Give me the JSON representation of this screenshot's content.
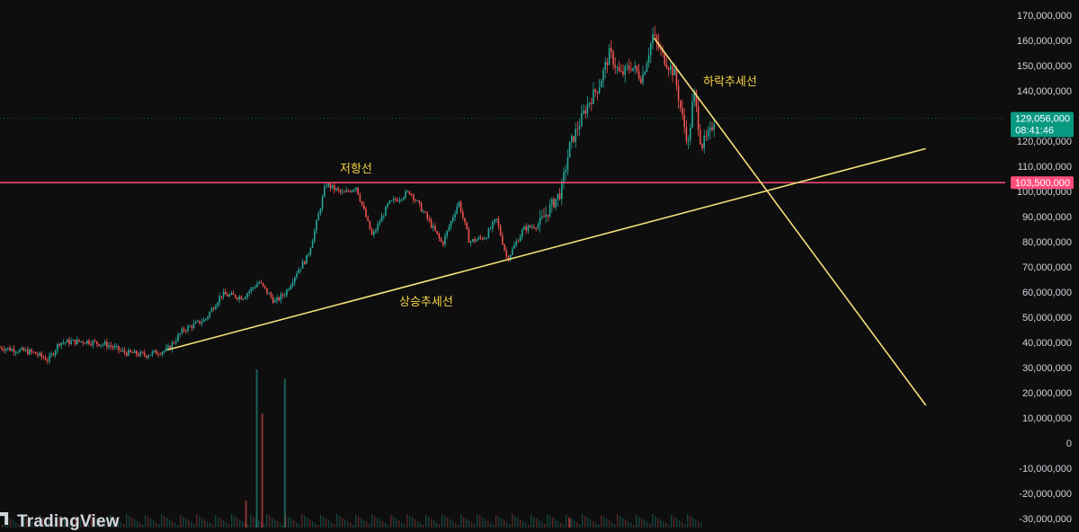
{
  "colors": {
    "background": "#0e0e0e",
    "up": "#26a69a",
    "down": "#ef5350",
    "trendline": "#f5e07a",
    "resistance": "#ff4d7a",
    "current_price_badge": "#089981",
    "resistance_badge": "#ff4d7a",
    "axis_text": "#d1d4dc"
  },
  "logo": {
    "text": "TradingView",
    "icon": "tradingview-logo-icon"
  },
  "chart_data": {
    "type": "candlestick",
    "title": "",
    "xlabel": "",
    "ylabel": "",
    "ylim": [
      -30000000,
      170000000
    ],
    "y_ticks": [
      {
        "value": 170000000,
        "label": "170,000,000"
      },
      {
        "value": 160000000,
        "label": "160,000,000"
      },
      {
        "value": 150000000,
        "label": "150,000,000"
      },
      {
        "value": 140000000,
        "label": "140,000,000"
      },
      {
        "value": 130000000,
        "label": "130,000,000"
      },
      {
        "value": 120000000,
        "label": "120,000,000"
      },
      {
        "value": 110000000,
        "label": "110,000,000"
      },
      {
        "value": 100000000,
        "label": "100,000,000"
      },
      {
        "value": 90000000,
        "label": "90,000,000"
      },
      {
        "value": 80000000,
        "label": "80,000,000"
      },
      {
        "value": 70000000,
        "label": "70,000,000"
      },
      {
        "value": 60000000,
        "label": "60,000,000"
      },
      {
        "value": 50000000,
        "label": "50,000,000"
      },
      {
        "value": 40000000,
        "label": "40,000,000"
      },
      {
        "value": 30000000,
        "label": "30,000,000"
      },
      {
        "value": 20000000,
        "label": "20,000,000"
      },
      {
        "value": 10000000,
        "label": "10,000,000"
      },
      {
        "value": 0,
        "label": "0"
      },
      {
        "value": -10000000,
        "label": "-10,000,000"
      },
      {
        "value": -20000000,
        "label": "-20,000,000"
      },
      {
        "value": -30000000,
        "label": "-30,000,000"
      }
    ],
    "current_price": {
      "value": 129056000,
      "label": "129,056,000",
      "countdown": "08:41:46"
    },
    "resistance": {
      "value": 103500000,
      "label": "103,500,000",
      "annotation": "저항선"
    },
    "uptrend": {
      "annotation": "상승추세선",
      "from": [
        0.155,
        37000000
      ],
      "to": [
        0.858,
        117000000
      ]
    },
    "downtrend": {
      "annotation": "하락추세선",
      "from": [
        0.606,
        161000000
      ],
      "to": [
        0.858,
        15000000
      ]
    },
    "price_path": [
      [
        0.0,
        38000000
      ],
      [
        0.03,
        36000000
      ],
      [
        0.045,
        33000000
      ],
      [
        0.055,
        40000000
      ],
      [
        0.08,
        40500000
      ],
      [
        0.1,
        39000000
      ],
      [
        0.115,
        36000000
      ],
      [
        0.135,
        35000000
      ],
      [
        0.155,
        37000000
      ],
      [
        0.17,
        45000000
      ],
      [
        0.19,
        49000000
      ],
      [
        0.205,
        59000000
      ],
      [
        0.225,
        58000000
      ],
      [
        0.24,
        64000000
      ],
      [
        0.255,
        56000000
      ],
      [
        0.265,
        60000000
      ],
      [
        0.275,
        68000000
      ],
      [
        0.285,
        74000000
      ],
      [
        0.292,
        85000000
      ],
      [
        0.302,
        103000000
      ],
      [
        0.318,
        99000000
      ],
      [
        0.33,
        102000000
      ],
      [
        0.345,
        82000000
      ],
      [
        0.36,
        95000000
      ],
      [
        0.38,
        100000000
      ],
      [
        0.395,
        90000000
      ],
      [
        0.41,
        79000000
      ],
      [
        0.425,
        96000000
      ],
      [
        0.435,
        80000000
      ],
      [
        0.45,
        82000000
      ],
      [
        0.46,
        89000000
      ],
      [
        0.47,
        73000000
      ],
      [
        0.485,
        85000000
      ],
      [
        0.5,
        87000000
      ],
      [
        0.512,
        95000000
      ],
      [
        0.52,
        100000000
      ],
      [
        0.528,
        118000000
      ],
      [
        0.535,
        125000000
      ],
      [
        0.545,
        135000000
      ],
      [
        0.555,
        142000000
      ],
      [
        0.565,
        155000000
      ],
      [
        0.575,
        146000000
      ],
      [
        0.585,
        150000000
      ],
      [
        0.595,
        145000000
      ],
      [
        0.605,
        162000000
      ],
      [
        0.615,
        153000000
      ],
      [
        0.625,
        147000000
      ],
      [
        0.632,
        130000000
      ],
      [
        0.638,
        119000000
      ],
      [
        0.643,
        140000000
      ],
      [
        0.65,
        118000000
      ],
      [
        0.658,
        123000000
      ],
      [
        0.662,
        129000000
      ]
    ],
    "volume_spikes": [
      {
        "x": 0.228,
        "value": 0.17
      },
      {
        "x": 0.238,
        "value": 1.0
      },
      {
        "x": 0.243,
        "value": 0.72
      },
      {
        "x": 0.264,
        "value": 0.94
      },
      {
        "x": 0.528,
        "value": 0.06
      }
    ]
  }
}
